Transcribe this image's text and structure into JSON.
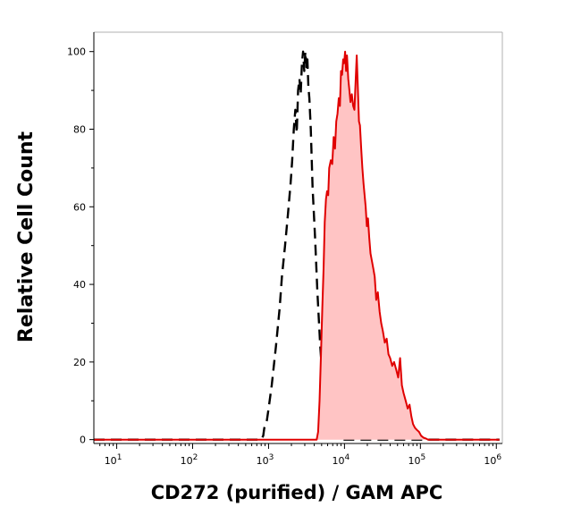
{
  "chart_data": {
    "type": "area",
    "title": "",
    "xlabel": "CD272 (purified) / GAM APC",
    "ylabel": "Relative Cell Count",
    "x_scale": "log",
    "xlim": [
      5,
      1200000
    ],
    "ylim": [
      -1,
      105
    ],
    "x_ticks": [
      {
        "value": 10,
        "base": "10",
        "exp": "1"
      },
      {
        "value": 100,
        "base": "10",
        "exp": "2"
      },
      {
        "value": 1000,
        "base": "10",
        "exp": "3"
      },
      {
        "value": 10000,
        "base": "10",
        "exp": "4"
      },
      {
        "value": 100000,
        "base": "10",
        "exp": "5"
      },
      {
        "value": 1000000,
        "base": "10",
        "exp": "6"
      }
    ],
    "y_ticks": [
      {
        "value": 0,
        "label": "0"
      },
      {
        "value": 20,
        "label": "20"
      },
      {
        "value": 40,
        "label": "40"
      },
      {
        "value": 60,
        "label": "60"
      },
      {
        "value": 80,
        "label": "80"
      },
      {
        "value": 100,
        "label": "100"
      }
    ],
    "grid": false,
    "colors": {
      "stained_line": "#e00000",
      "stained_fill": "#ffc4c4",
      "control_line": "#000000"
    },
    "series": [
      {
        "style": "dashed-black",
        "x": [
          4,
          800,
          850,
          880,
          950,
          1000,
          1100,
          1250,
          1400,
          1500,
          1650,
          1800,
          1950,
          2050,
          2150,
          2250,
          2350,
          2450,
          2550,
          2650,
          2750,
          2850,
          2950,
          3050,
          3150,
          3250,
          3350,
          3450,
          3600,
          3800,
          4100,
          4400,
          4800,
          5200,
          5700,
          6200,
          6700,
          7200,
          7800,
          8500,
          1100000
        ],
        "y": [
          0,
          0,
          1,
          3,
          5,
          8,
          14,
          24,
          34,
          42,
          50,
          58,
          66,
          72,
          80,
          85,
          79,
          90,
          93,
          89,
          97,
          100,
          95,
          100,
          96,
          98,
          91,
          88,
          80,
          65,
          52,
          38,
          24,
          14,
          8,
          4,
          2,
          1,
          0.5,
          0,
          0
        ]
      },
      {
        "style": "filled-red",
        "x": [
          4,
          4300,
          4500,
          4700,
          4900,
          5100,
          5300,
          5500,
          5700,
          5900,
          6100,
          6300,
          6600,
          6900,
          7200,
          7500,
          7800,
          8100,
          8400,
          8700,
          9000,
          9300,
          9600,
          9900,
          10200,
          10500,
          10800,
          11200,
          11600,
          12000,
          12500,
          13000,
          13500,
          14000,
          14500,
          15000,
          15500,
          16000,
          16600,
          17200,
          17800,
          18400,
          19000,
          19700,
          20400,
          21200,
          22000,
          23000,
          24000,
          25000,
          26200,
          27500,
          29000,
          30500,
          32000,
          34000,
          36000,
          38000,
          40000,
          42500,
          45000,
          48000,
          51000,
          54000,
          57000,
          60000,
          64000,
          68000,
          72000,
          76000,
          80000,
          85000,
          90000,
          96000,
          102000,
          110000,
          118000,
          126000,
          135000,
          145000,
          1100000
        ],
        "y": [
          0,
          0,
          2,
          10,
          22,
          34,
          44,
          56,
          62,
          64,
          63,
          70,
          72,
          71,
          78,
          75,
          82,
          84,
          88,
          86,
          95,
          94,
          98,
          97,
          100,
          95,
          99,
          93,
          90,
          87,
          89,
          86,
          85,
          92,
          99,
          91,
          82,
          81,
          75,
          70,
          66,
          63,
          60,
          55,
          57,
          52,
          48,
          46,
          44,
          42,
          36,
          38,
          33,
          30,
          28,
          25,
          26,
          22,
          21,
          19,
          20,
          18,
          16,
          21,
          14,
          12,
          10,
          8,
          9,
          6,
          4,
          3,
          2.5,
          2,
          1,
          0.5,
          0.3,
          0,
          0,
          0,
          0
        ]
      }
    ]
  }
}
